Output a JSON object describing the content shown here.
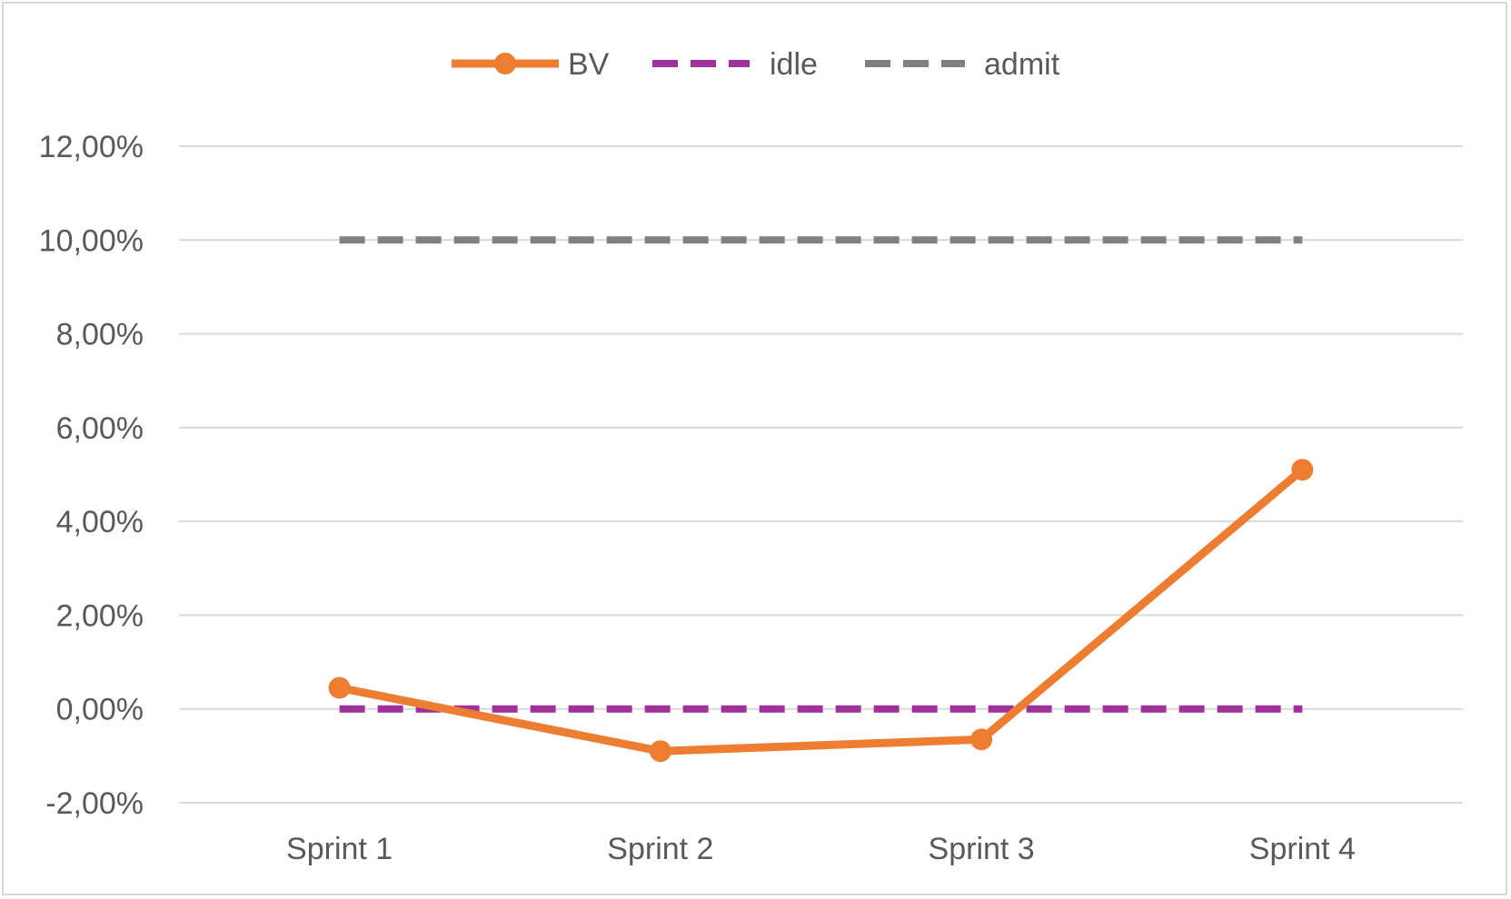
{
  "chart_data": {
    "type": "line",
    "title": "",
    "xlabel": "",
    "ylabel": "",
    "categories": [
      "Sprint 1",
      "Sprint 2",
      "Sprint 3",
      "Sprint 4"
    ],
    "ylim": [
      -0.02,
      0.12
    ],
    "yticks": [
      -0.02,
      0.0,
      0.02,
      0.04,
      0.06,
      0.08,
      0.1,
      0.12
    ],
    "ytick_labels": [
      "-2,00%",
      "0,00%",
      "2,00%",
      "4,00%",
      "6,00%",
      "8,00%",
      "10,00%",
      "12,00%"
    ],
    "grid": "horizontal",
    "legend_position": "top",
    "series": [
      {
        "name": "BV",
        "values": [
          0.0045,
          -0.009,
          -0.0065,
          0.051
        ],
        "color": "#ED7D31",
        "style": "solid",
        "markers": true
      },
      {
        "name": "idle",
        "values": [
          0.0,
          0.0,
          0.0,
          0.0
        ],
        "color": "#A0309A",
        "style": "dashed",
        "markers": false
      },
      {
        "name": "admit",
        "values": [
          0.1,
          0.1,
          0.1,
          0.1
        ],
        "color": "#808080",
        "style": "dashed",
        "markers": false
      }
    ]
  }
}
